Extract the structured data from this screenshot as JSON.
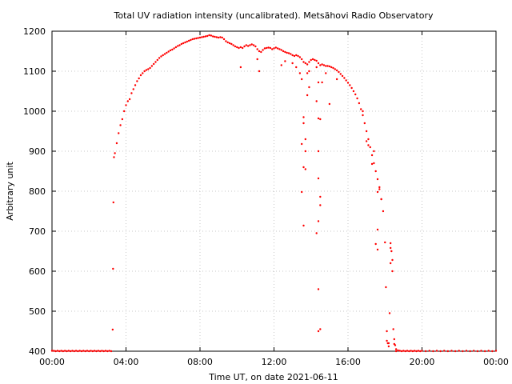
{
  "chart_data": {
    "type": "scatter",
    "title": "Total UV radiation intensity (uncalibrated). Metsähovi Radio Observatory",
    "xlabel": "Time UT, on date 2021-06-11",
    "ylabel": "Arbitrary unit",
    "x_unit": "hours UT",
    "xlim": [
      0,
      24
    ],
    "ylim": [
      400,
      1200
    ],
    "x_ticks": [
      {
        "value": 0,
        "label": "00:00"
      },
      {
        "value": 4,
        "label": "04:00"
      },
      {
        "value": 8,
        "label": "08:00"
      },
      {
        "value": 12,
        "label": "12:00"
      },
      {
        "value": 16,
        "label": "16:00"
      },
      {
        "value": 20,
        "label": "20:00"
      },
      {
        "value": 24,
        "label": "00:00"
      }
    ],
    "y_ticks": [
      400,
      500,
      600,
      700,
      800,
      900,
      1000,
      1100,
      1200
    ],
    "grid": true,
    "grid_style": "dotted",
    "legend": "none",
    "series_color": "#ff0000",
    "series": [
      {
        "values": [
          [
            0.0,
            401
          ],
          [
            0.1,
            401
          ],
          [
            0.2,
            400
          ],
          [
            0.3,
            401
          ],
          [
            0.4,
            400
          ],
          [
            0.5,
            401
          ],
          [
            0.6,
            400
          ],
          [
            0.7,
            401
          ],
          [
            0.8,
            400
          ],
          [
            0.9,
            401
          ],
          [
            1.0,
            400
          ],
          [
            1.1,
            401
          ],
          [
            1.2,
            400
          ],
          [
            1.3,
            401
          ],
          [
            1.4,
            400
          ],
          [
            1.5,
            401
          ],
          [
            1.6,
            400
          ],
          [
            1.7,
            401
          ],
          [
            1.8,
            400
          ],
          [
            1.9,
            401
          ],
          [
            2.0,
            400
          ],
          [
            2.1,
            401
          ],
          [
            2.2,
            400
          ],
          [
            2.3,
            401
          ],
          [
            2.4,
            400
          ],
          [
            2.5,
            401
          ],
          [
            2.6,
            400
          ],
          [
            2.7,
            401
          ],
          [
            2.8,
            400
          ],
          [
            2.9,
            401
          ],
          [
            3.0,
            400
          ],
          [
            3.1,
            401
          ],
          [
            3.2,
            400
          ],
          [
            3.28,
            454
          ],
          [
            3.3,
            606
          ],
          [
            3.32,
            772
          ],
          [
            3.35,
            885
          ],
          [
            3.4,
            895
          ],
          [
            3.5,
            920
          ],
          [
            3.6,
            945
          ],
          [
            3.7,
            965
          ],
          [
            3.8,
            980
          ],
          [
            3.9,
            1000
          ],
          [
            4.0,
            1015
          ],
          [
            4.1,
            1025
          ],
          [
            4.2,
            1030
          ],
          [
            4.3,
            1045
          ],
          [
            4.4,
            1055
          ],
          [
            4.5,
            1065
          ],
          [
            4.6,
            1075
          ],
          [
            4.7,
            1082
          ],
          [
            4.8,
            1090
          ],
          [
            4.9,
            1095
          ],
          [
            5.0,
            1100
          ],
          [
            5.1,
            1103
          ],
          [
            5.2,
            1105
          ],
          [
            5.3,
            1108
          ],
          [
            5.4,
            1113
          ],
          [
            5.5,
            1118
          ],
          [
            5.6,
            1123
          ],
          [
            5.7,
            1128
          ],
          [
            5.8,
            1133
          ],
          [
            5.9,
            1137
          ],
          [
            6.0,
            1140
          ],
          [
            6.1,
            1143
          ],
          [
            6.2,
            1146
          ],
          [
            6.3,
            1149
          ],
          [
            6.4,
            1152
          ],
          [
            6.5,
            1154
          ],
          [
            6.6,
            1157
          ],
          [
            6.7,
            1160
          ],
          [
            6.8,
            1163
          ],
          [
            6.9,
            1165
          ],
          [
            7.0,
            1168
          ],
          [
            7.1,
            1170
          ],
          [
            7.2,
            1172
          ],
          [
            7.3,
            1174
          ],
          [
            7.4,
            1176
          ],
          [
            7.5,
            1178
          ],
          [
            7.6,
            1180
          ],
          [
            7.7,
            1181
          ],
          [
            7.8,
            1182
          ],
          [
            7.9,
            1183
          ],
          [
            8.0,
            1184
          ],
          [
            8.1,
            1185
          ],
          [
            8.2,
            1186
          ],
          [
            8.3,
            1187
          ],
          [
            8.4,
            1188
          ],
          [
            8.5,
            1190
          ],
          [
            8.6,
            1189
          ],
          [
            8.7,
            1187
          ],
          [
            8.8,
            1186
          ],
          [
            8.9,
            1185
          ],
          [
            9.0,
            1184
          ],
          [
            9.1,
            1185
          ],
          [
            9.2,
            1184
          ],
          [
            9.3,
            1180
          ],
          [
            9.4,
            1175
          ],
          [
            9.5,
            1172
          ],
          [
            9.6,
            1170
          ],
          [
            9.7,
            1168
          ],
          [
            9.8,
            1165
          ],
          [
            9.9,
            1162
          ],
          [
            10.0,
            1160
          ],
          [
            10.1,
            1158
          ],
          [
            10.2,
            1160
          ],
          [
            10.3,
            1158
          ],
          [
            10.4,
            1162
          ],
          [
            10.5,
            1165
          ],
          [
            10.6,
            1163
          ],
          [
            10.7,
            1165
          ],
          [
            10.8,
            1167
          ],
          [
            10.9,
            1165
          ],
          [
            11.0,
            1162
          ],
          [
            11.1,
            1155
          ],
          [
            11.2,
            1150
          ],
          [
            11.3,
            1148
          ],
          [
            11.4,
            1153
          ],
          [
            11.5,
            1157
          ],
          [
            11.6,
            1158
          ],
          [
            11.7,
            1159
          ],
          [
            11.8,
            1158
          ],
          [
            11.9,
            1155
          ],
          [
            12.0,
            1157
          ],
          [
            12.1,
            1159
          ],
          [
            12.2,
            1157
          ],
          [
            12.3,
            1155
          ],
          [
            12.4,
            1153
          ],
          [
            12.5,
            1150
          ],
          [
            12.6,
            1148
          ],
          [
            12.7,
            1146
          ],
          [
            12.8,
            1145
          ],
          [
            12.9,
            1143
          ],
          [
            13.0,
            1140
          ],
          [
            13.1,
            1138
          ],
          [
            13.2,
            1140
          ],
          [
            13.3,
            1138
          ],
          [
            13.4,
            1135
          ],
          [
            13.5,
            1130
          ],
          [
            13.6,
            1123
          ],
          [
            13.7,
            1120
          ],
          [
            13.8,
            1117
          ],
          [
            13.9,
            1123
          ],
          [
            14.0,
            1128
          ],
          [
            14.1,
            1130
          ],
          [
            14.2,
            1128
          ],
          [
            14.3,
            1126
          ],
          [
            14.4,
            1120
          ],
          [
            14.5,
            1115
          ],
          [
            14.6,
            1117
          ],
          [
            14.7,
            1115
          ],
          [
            14.8,
            1113
          ],
          [
            14.9,
            1113
          ],
          [
            15.0,
            1112
          ],
          [
            15.1,
            1110
          ],
          [
            15.2,
            1108
          ],
          [
            15.3,
            1105
          ],
          [
            15.4,
            1102
          ],
          [
            15.5,
            1098
          ],
          [
            15.6,
            1093
          ],
          [
            15.7,
            1088
          ],
          [
            15.8,
            1083
          ],
          [
            15.9,
            1077
          ],
          [
            16.0,
            1071
          ],
          [
            16.1,
            1065
          ],
          [
            16.2,
            1058
          ],
          [
            16.3,
            1050
          ],
          [
            16.4,
            1042
          ],
          [
            16.5,
            1032
          ],
          [
            16.6,
            1020
          ],
          [
            16.7,
            1005
          ],
          [
            16.8,
            990
          ],
          [
            16.9,
            970
          ],
          [
            17.0,
            950
          ],
          [
            17.1,
            930
          ],
          [
            17.2,
            910
          ],
          [
            17.3,
            890
          ],
          [
            17.4,
            870
          ],
          [
            17.5,
            850
          ],
          [
            17.6,
            830
          ],
          [
            17.7,
            810
          ],
          [
            17.8,
            780
          ],
          [
            17.9,
            750
          ],
          [
            18.0,
            672
          ],
          [
            18.05,
            560
          ],
          [
            18.1,
            450
          ],
          [
            18.15,
            420
          ],
          [
            18.2,
            412
          ],
          [
            18.25,
            495
          ],
          [
            18.3,
            620
          ],
          [
            18.35,
            650
          ],
          [
            18.4,
            600
          ],
          [
            18.45,
            455
          ],
          [
            18.5,
            430
          ],
          [
            18.55,
            415
          ],
          [
            18.6,
            405
          ],
          [
            18.7,
            402
          ],
          [
            18.8,
            401
          ],
          [
            18.9,
            400
          ],
          [
            19.0,
            401
          ],
          [
            19.1,
            400
          ],
          [
            19.2,
            401
          ],
          [
            19.3,
            400
          ],
          [
            19.4,
            401
          ],
          [
            19.5,
            400
          ],
          [
            19.6,
            401
          ],
          [
            19.7,
            400
          ],
          [
            19.8,
            401
          ],
          [
            19.9,
            400
          ],
          [
            20.0,
            401
          ],
          [
            20.2,
            400
          ],
          [
            20.4,
            401
          ],
          [
            20.6,
            400
          ],
          [
            20.8,
            401
          ],
          [
            21.0,
            400
          ],
          [
            21.2,
            401
          ],
          [
            21.4,
            400
          ],
          [
            21.6,
            401
          ],
          [
            21.8,
            400
          ],
          [
            22.0,
            401
          ],
          [
            22.2,
            400
          ],
          [
            22.4,
            401
          ],
          [
            22.6,
            400
          ],
          [
            22.8,
            401
          ],
          [
            23.0,
            400
          ],
          [
            23.2,
            401
          ],
          [
            23.4,
            400
          ],
          [
            23.6,
            401
          ],
          [
            23.8,
            400
          ],
          [
            24.0,
            401
          ],
          [
            10.2,
            1110
          ],
          [
            11.1,
            1130
          ],
          [
            11.2,
            1100
          ],
          [
            12.4,
            1115
          ],
          [
            12.6,
            1125
          ],
          [
            13.0,
            1120
          ],
          [
            13.2,
            1110
          ],
          [
            13.4,
            1095
          ],
          [
            13.5,
            1080
          ],
          [
            13.6,
            985
          ],
          [
            13.6,
            970
          ],
          [
            13.7,
            930
          ],
          [
            13.7,
            900
          ],
          [
            13.6,
            860
          ],
          [
            13.7,
            855
          ],
          [
            13.8,
            1095
          ],
          [
            13.8,
            1040
          ],
          [
            13.9,
            1060
          ],
          [
            13.9,
            1100
          ],
          [
            13.5,
            918
          ],
          [
            13.5,
            798
          ],
          [
            13.6,
            714
          ],
          [
            14.3,
            1110
          ],
          [
            14.4,
            1072
          ],
          [
            14.4,
            982
          ],
          [
            14.5,
            980
          ],
          [
            14.4,
            900
          ],
          [
            14.3,
            1025
          ],
          [
            14.4,
            832
          ],
          [
            14.5,
            786
          ],
          [
            14.5,
            765
          ],
          [
            14.4,
            725
          ],
          [
            14.3,
            695
          ],
          [
            14.4,
            555
          ],
          [
            14.4,
            450
          ],
          [
            14.5,
            455
          ],
          [
            14.6,
            1072
          ],
          [
            14.8,
            1095
          ],
          [
            15.0,
            1018
          ],
          [
            15.4,
            1080
          ],
          [
            16.8,
            1000
          ],
          [
            17.0,
            925
          ],
          [
            17.1,
            915
          ],
          [
            17.3,
            868
          ],
          [
            17.4,
            900
          ],
          [
            17.6,
            798
          ],
          [
            17.7,
            805
          ],
          [
            17.5,
            668
          ],
          [
            17.6,
            654
          ],
          [
            17.6,
            704
          ],
          [
            17.8,
            780
          ],
          [
            18.1,
            426
          ],
          [
            18.2,
            420
          ],
          [
            18.3,
            670
          ],
          [
            18.3,
            658
          ],
          [
            18.4,
            628
          ],
          [
            18.5,
            418
          ],
          [
            18.6,
            400
          ]
        ]
      }
    ]
  }
}
